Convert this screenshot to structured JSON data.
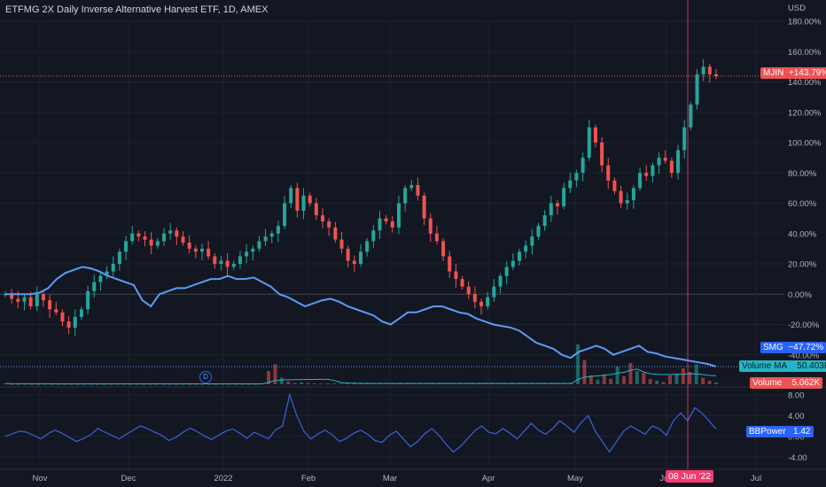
{
  "header": {
    "title": "ETFMG 2X Daily Inverse Alternative Harvest ETF, 1D, AMEX"
  },
  "chart_data": {
    "type": "line",
    "title": "ETFMG 2X Daily Inverse Alternative Harvest ETF, 1D, AMEX",
    "currency": "USD",
    "y_ticks": [
      "180.00%",
      "160.00%",
      "140.00%",
      "120.00%",
      "100.00%",
      "80.00%",
      "60.00%",
      "40.00%",
      "20.00%",
      "0.00%",
      "-20.00%",
      "-40.00%"
    ],
    "ylim": [
      -60,
      180
    ],
    "x_ticks": [
      "Nov",
      "Dec",
      "2022",
      "Feb",
      "Mar",
      "Apr",
      "May",
      "Jun",
      "Jul"
    ],
    "crosshair_date": "08 Jun '22",
    "series": [
      {
        "name": "MJIN",
        "color": "#ef5350",
        "last_label": "+143.79%",
        "values": [
          0,
          -3,
          -5,
          -2,
          -8,
          0,
          -4,
          -10,
          -12,
          -18,
          -22,
          -15,
          -10,
          2,
          8,
          12,
          15,
          20,
          28,
          35,
          40,
          38,
          36,
          32,
          35,
          40,
          42,
          38,
          34,
          30,
          28,
          30,
          25,
          20,
          22,
          18,
          20,
          25,
          28,
          30,
          35,
          38,
          40,
          45,
          60,
          70,
          55,
          65,
          60,
          52,
          48,
          44,
          36,
          30,
          22,
          20,
          28,
          35,
          42,
          50,
          48,
          44,
          60,
          70,
          72,
          65,
          50,
          40,
          35,
          25,
          15,
          10,
          5,
          0,
          -5,
          -8,
          -2,
          5,
          12,
          18,
          22,
          28,
          32,
          38,
          45,
          52,
          60,
          58,
          70,
          75,
          80,
          90,
          110,
          100,
          85,
          75,
          68,
          60,
          62,
          70,
          80,
          78,
          85,
          90,
          88,
          80,
          95,
          110,
          125,
          145,
          150,
          145,
          143.79
        ]
      },
      {
        "name": "SMG",
        "color": "#5b9cf6",
        "last_label": "−47.72%",
        "values": [
          0,
          0,
          0,
          0,
          1,
          4,
          10,
          14,
          16,
          18,
          17,
          15,
          12,
          10,
          8,
          6,
          -4,
          -8,
          0,
          2,
          4,
          4,
          6,
          8,
          10,
          10,
          12,
          10,
          10,
          11,
          8,
          5,
          0,
          -2,
          -5,
          -8,
          -6,
          -4,
          -3,
          -5,
          -8,
          -10,
          -12,
          -14,
          -18,
          -20,
          -16,
          -12,
          -12,
          -10,
          -8,
          -8,
          -10,
          -12,
          -13,
          -16,
          -18,
          -20,
          -21,
          -22,
          -24,
          -28,
          -32,
          -34,
          -36,
          -40,
          -42,
          -38,
          -36,
          -34,
          -36,
          -40,
          -38,
          -36,
          -34,
          -38,
          -39,
          -41,
          -42,
          -43,
          -44,
          -45,
          -46,
          -47.72
        ]
      }
    ],
    "volume": {
      "label": "Volume",
      "value_label": "5.062K",
      "ma_label": "Volume MA",
      "ma_value_label": "50.403K",
      "values": [
        2,
        1,
        1,
        1,
        1,
        1,
        1,
        1,
        1,
        1,
        1,
        1,
        1,
        1,
        1,
        1,
        1,
        1,
        1,
        1,
        1,
        1,
        1,
        1,
        1,
        1,
        1,
        1,
        1,
        1,
        1,
        1,
        1,
        1,
        1,
        1,
        1,
        1,
        1,
        2,
        30,
        45,
        15,
        6,
        3,
        4,
        3,
        2,
        2,
        2,
        2,
        2,
        2,
        2,
        2,
        2,
        2,
        2,
        2,
        2,
        2,
        2,
        2,
        2,
        2,
        2,
        2,
        2,
        2,
        2,
        2,
        2,
        2,
        2,
        2,
        2,
        2,
        2,
        2,
        2,
        2,
        2,
        2,
        2,
        2,
        2,
        2,
        90,
        55,
        20,
        10,
        22,
        12,
        40,
        18,
        48,
        30,
        26,
        12,
        8,
        5,
        20,
        24,
        36,
        28,
        45,
        15,
        8,
        4
      ]
    },
    "indicator": {
      "name": "BBPower",
      "value_label": "1.42",
      "color": "#3a64d8",
      "y_ticks": [
        "8.00",
        "4.00",
        "0.00",
        "-4.00"
      ],
      "ylim": [
        -6,
        9
      ],
      "values": [
        0,
        0.5,
        1,
        0.8,
        0.2,
        -0.5,
        0.5,
        1.2,
        0.6,
        -0.2,
        -1,
        -0.4,
        0.3,
        1.5,
        0.8,
        0.2,
        -0.5,
        0.4,
        1.2,
        2,
        1.5,
        0.8,
        0.2,
        -0.8,
        -0.2,
        0.8,
        1.6,
        0.9,
        0.1,
        -0.6,
        0.2,
        1,
        1.4,
        0.6,
        -0.4,
        0.8,
        0.2,
        -0.5,
        1.2,
        2,
        8,
        4,
        1,
        -0.5,
        0.5,
        1.2,
        0.3,
        -1,
        -0.4,
        0.6,
        1.2,
        0.4,
        -0.8,
        -1.2,
        0.2,
        1,
        -0.5,
        -2,
        -1,
        0.5,
        1.5,
        0.2,
        -1.5,
        -3,
        -2,
        -0.5,
        1,
        2,
        0.8,
        0.5,
        1.5,
        0.6,
        -0.5,
        1,
        2.5,
        1.2,
        0.4,
        1.5,
        3,
        2,
        0.8,
        2.6,
        4,
        1,
        -1,
        -3,
        -1,
        1,
        2,
        1.2,
        0.4,
        2,
        1.5,
        0.2,
        3,
        4.5,
        3,
        5.5,
        4.5,
        3,
        1.42
      ]
    }
  },
  "scale_tags": {
    "mjin": {
      "name": "MJIN",
      "value": "+143.79%",
      "color": "#f05153"
    },
    "smg": {
      "name": "SMG",
      "value": "−47.72%",
      "color": "#2962ff"
    },
    "vol_ma": {
      "name": "Volume MA",
      "value": "50.403K",
      "color": "#22b5c5"
    },
    "vol": {
      "name": "Volume",
      "value": "5.062K",
      "color": "#f05153"
    },
    "bbp": {
      "name": "BBPower",
      "value": "1.42",
      "color": "#2962ff"
    }
  },
  "dividend_marker": "D",
  "time_tag": "08 Jun '22"
}
